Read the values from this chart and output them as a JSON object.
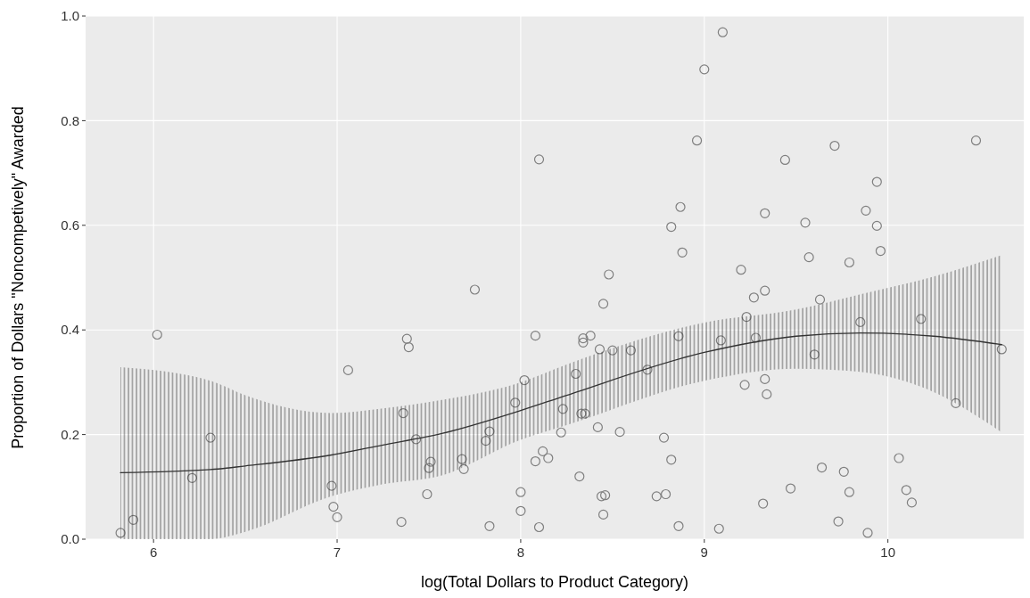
{
  "chart_data": {
    "type": "scatter",
    "xlabel": "log(Total Dollars to Product Category)",
    "ylabel": "Proportion of Dollars \"Noncompetively\" Awarded",
    "xlim": [
      5.63,
      10.74
    ],
    "ylim": [
      0,
      1
    ],
    "xticks": [
      6,
      7,
      8,
      9,
      10
    ],
    "yticks": [
      {
        "value": 0,
        "label": "0.0"
      },
      {
        "value": 0.2,
        "label": "0.2"
      },
      {
        "value": 0.4,
        "label": "0.4"
      },
      {
        "value": 0.6,
        "label": "0.6"
      },
      {
        "value": 0.8,
        "label": "0.8"
      },
      {
        "value": 1,
        "label": "1.0"
      }
    ],
    "grid": true,
    "series": [
      {
        "marker": "circle",
        "color": "#7f7f7f",
        "x": [
          5.82,
          5.89,
          6.02,
          6.21,
          6.31,
          6.97,
          6.98,
          7.0,
          7.06,
          7.35,
          7.36,
          7.38,
          7.39,
          7.43,
          7.49,
          7.5,
          7.51,
          7.68,
          7.69,
          7.75,
          7.81,
          7.83,
          7.83,
          7.97,
          8.0,
          8.0,
          8.02,
          8.08,
          8.08,
          8.1,
          8.1,
          8.12,
          8.15,
          8.22,
          8.23,
          8.3,
          8.32,
          8.33,
          8.35,
          8.34,
          8.34,
          8.38,
          8.42,
          8.43,
          8.44,
          8.46,
          8.45,
          8.45,
          8.48,
          8.5,
          8.54,
          8.6,
          8.69,
          8.74,
          8.78,
          8.79,
          8.82,
          8.82,
          8.87,
          8.88,
          8.86,
          8.86,
          8.96,
          9.0,
          9.1,
          9.08,
          9.09,
          9.44,
          9.71,
          9.33,
          9.55,
          9.94,
          9.88,
          9.94,
          9.96,
          10.48,
          9.2,
          9.57,
          9.79,
          9.27,
          9.33,
          9.63,
          9.23,
          9.28,
          9.6,
          9.85,
          10.18,
          10.62,
          9.22,
          9.33,
          9.34,
          10.37,
          10.06,
          9.64,
          9.76,
          9.47,
          9.79,
          10.1,
          10.13,
          9.32,
          9.73,
          9.89
        ],
        "values": [
          0.012,
          0.037,
          0.391,
          0.117,
          0.194,
          0.102,
          0.062,
          0.042,
          0.323,
          0.033,
          0.241,
          0.383,
          0.367,
          0.191,
          0.086,
          0.136,
          0.148,
          0.153,
          0.134,
          0.477,
          0.188,
          0.206,
          0.025,
          0.261,
          0.09,
          0.054,
          0.304,
          0.389,
          0.149,
          0.726,
          0.023,
          0.168,
          0.155,
          0.204,
          0.249,
          0.316,
          0.12,
          0.24,
          0.24,
          0.384,
          0.376,
          0.389,
          0.214,
          0.363,
          0.082,
          0.084,
          0.047,
          0.45,
          0.506,
          0.361,
          0.205,
          0.361,
          0.324,
          0.082,
          0.194,
          0.086,
          0.152,
          0.597,
          0.635,
          0.548,
          0.388,
          0.025,
          0.762,
          0.898,
          0.969,
          0.02,
          0.38,
          0.725,
          0.752,
          0.623,
          0.605,
          0.683,
          0.628,
          0.599,
          0.551,
          0.762,
          0.515,
          0.539,
          0.529,
          0.462,
          0.475,
          0.458,
          0.425,
          0.385,
          0.353,
          0.415,
          0.421,
          0.363,
          0.295,
          0.306,
          0.277,
          0.26,
          0.155,
          0.137,
          0.129,
          0.097,
          0.09,
          0.094,
          0.07,
          0.068,
          0.034,
          0.012
        ]
      },
      {
        "type": "line",
        "marker": "none",
        "color": "#333333",
        "x": [
          5.82,
          6.31,
          6.5,
          6.97,
          7.25,
          7.57,
          8.0,
          8.25,
          9.0,
          9.5,
          9.85,
          10.25,
          10.62
        ],
        "values": [
          0.127,
          0.133,
          0.14,
          0.161,
          0.18,
          0.202,
          0.246,
          0.275,
          0.357,
          0.388,
          0.394,
          0.388,
          0.372
        ],
        "upper": [
          0.329,
          0.303,
          0.275,
          0.241,
          0.25,
          0.266,
          0.3,
          0.334,
          0.414,
          0.439,
          0.468,
          0.502,
          0.543
        ],
        "lower": [
          0,
          0,
          0.014,
          0.082,
          0.105,
          0.122,
          0.19,
          0.218,
          0.303,
          0.326,
          0.32,
          0.281,
          0.204
        ]
      }
    ]
  }
}
